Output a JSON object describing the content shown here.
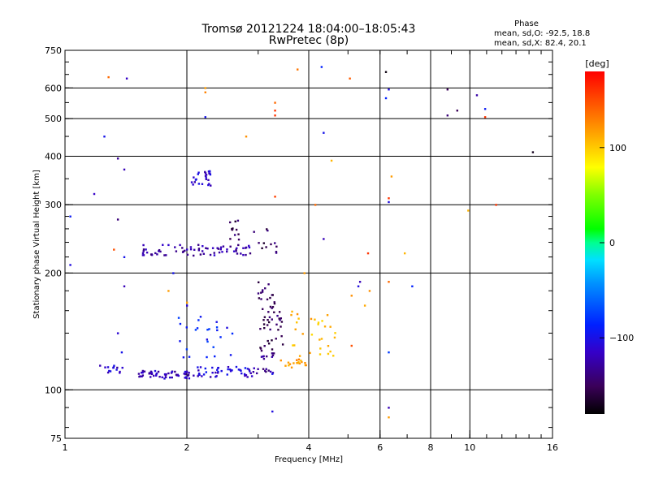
{
  "chart_data": {
    "type": "scatter",
    "title": "Tromsø 20121224 18:04:00–18:05:43",
    "subtitle": "RwPretec (8p)",
    "phase_box": {
      "heading": "Phase",
      "line1": "mean, sd,O: -92.5, 18.8",
      "line2": "mean, sd,X:  82.4, 20.1"
    },
    "xlabel": "Frequency [MHz]",
    "ylabel": "Stationary phase Virtual Height [km]",
    "x_scale": "log",
    "y_scale": "log",
    "xlim": [
      1,
      16
    ],
    "ylim": [
      75,
      750
    ],
    "x_ticks": [
      1,
      2,
      4,
      6,
      8,
      10,
      16
    ],
    "x_tick_labels": [
      "1",
      "2",
      "4",
      "6",
      "8",
      "10",
      "16"
    ],
    "y_ticks": [
      75,
      100,
      200,
      300,
      400,
      500,
      600,
      750
    ],
    "y_tick_labels": [
      "75",
      "100",
      "200",
      "300",
      "400",
      "500",
      "600",
      "750"
    ],
    "x_gridlines": [
      2,
      4,
      6,
      8,
      10
    ],
    "y_gridlines": [
      100,
      200,
      300,
      400,
      500,
      600
    ],
    "grid": true,
    "colorbar": {
      "label": "[deg]",
      "range": [
        -180,
        180
      ],
      "ticks": [
        100,
        0,
        -100
      ],
      "tick_labels": [
        "100",
        "0",
        "−100"
      ]
    },
    "point_color_encodes": "phase (deg)",
    "clusters": [
      {
        "x_range": [
          1.22,
          1.4
        ],
        "y_range": [
          110,
          116
        ],
        "n": 14,
        "phase": -115
      },
      {
        "x_range": [
          1.52,
          2.05
        ],
        "y_range": [
          107,
          112
        ],
        "n": 55,
        "phase": -120
      },
      {
        "x_range": [
          2.05,
          2.9
        ],
        "y_range": [
          108,
          115
        ],
        "n": 45,
        "phase": -110
      },
      {
        "x_range": [
          2.9,
          3.3
        ],
        "y_range": [
          110,
          125
        ],
        "n": 20,
        "phase": -130
      },
      {
        "x_range": [
          3.0,
          3.3
        ],
        "y_range": [
          125,
          190
        ],
        "n": 40,
        "phase": -150
      },
      {
        "x_range": [
          3.3,
          3.45
        ],
        "y_range": [
          130,
          160
        ],
        "n": 12,
        "phase": -145
      },
      {
        "x_range": [
          3.4,
          3.95
        ],
        "y_range": [
          114,
          120
        ],
        "n": 18,
        "phase": 120
      },
      {
        "x_range": [
          3.6,
          4.65
        ],
        "y_range": [
          120,
          160
        ],
        "n": 30,
        "phase": 110
      },
      {
        "x_range": [
          1.55,
          2.9
        ],
        "y_range": [
          222,
          237
        ],
        "n": 70,
        "phase": -125
      },
      {
        "x_range": [
          2.55,
          2.7
        ],
        "y_range": [
          235,
          275
        ],
        "n": 12,
        "phase": -150
      },
      {
        "x_range": [
          2.05,
          2.3
        ],
        "y_range": [
          335,
          372
        ],
        "n": 25,
        "phase": -110
      },
      {
        "x_range": [
          1.9,
          2.6
        ],
        "y_range": [
          120,
          155
        ],
        "n": 25,
        "phase": -90
      },
      {
        "x_range": [
          2.9,
          3.4
        ],
        "y_range": [
          220,
          260
        ],
        "n": 12,
        "phase": -150
      }
    ],
    "points": [
      [
        1.03,
        280,
        -95
      ],
      [
        1.03,
        210,
        -105
      ],
      [
        1.18,
        320,
        -115
      ],
      [
        1.25,
        450,
        -100
      ],
      [
        1.28,
        640,
        140
      ],
      [
        1.35,
        395,
        -130
      ],
      [
        1.35,
        275,
        -140
      ],
      [
        1.4,
        370,
        -120
      ],
      [
        1.4,
        220,
        -100
      ],
      [
        1.42,
        635,
        -115
      ],
      [
        1.35,
        140,
        -110
      ],
      [
        1.38,
        125,
        -100
      ],
      [
        1.4,
        185,
        -120
      ],
      [
        1.32,
        230,
        150
      ],
      [
        1.8,
        180,
        120
      ],
      [
        2.22,
        600,
        120
      ],
      [
        2.22,
        585,
        130
      ],
      [
        2.22,
        505,
        -100
      ],
      [
        2.8,
        450,
        125
      ],
      [
        3.3,
        550,
        140
      ],
      [
        3.3,
        525,
        160
      ],
      [
        3.3,
        510,
        160
      ],
      [
        3.3,
        315,
        155
      ],
      [
        3.75,
        670,
        135
      ],
      [
        4.15,
        300,
        140
      ],
      [
        4.3,
        680,
        -90
      ],
      [
        4.35,
        460,
        -100
      ],
      [
        4.35,
        245,
        -120
      ],
      [
        4.55,
        390,
        110
      ],
      [
        5.05,
        635,
        145
      ],
      [
        5.3,
        185,
        -105
      ],
      [
        5.35,
        190,
        -120
      ],
      [
        5.5,
        165,
        115
      ],
      [
        5.1,
        175,
        125
      ],
      [
        5.1,
        130,
        150
      ],
      [
        5.6,
        225,
        160
      ],
      [
        5.65,
        180,
        125
      ],
      [
        6.2,
        660,
        -175
      ],
      [
        6.2,
        565,
        -90
      ],
      [
        6.3,
        595,
        -105
      ],
      [
        6.3,
        312,
        160
      ],
      [
        6.3,
        305,
        -105
      ],
      [
        6.3,
        190,
        140
      ],
      [
        6.3,
        125,
        -80
      ],
      [
        6.4,
        355,
        120
      ],
      [
        6.9,
        225,
        110
      ],
      [
        7.2,
        185,
        -90
      ],
      [
        6.3,
        90,
        -120
      ],
      [
        6.3,
        85,
        120
      ],
      [
        8.8,
        595,
        -150
      ],
      [
        8.8,
        510,
        -140
      ],
      [
        9.3,
        525,
        -150
      ],
      [
        10.4,
        575,
        -125
      ],
      [
        10.9,
        530,
        -95
      ],
      [
        10.9,
        505,
        160
      ],
      [
        11.6,
        300,
        160
      ],
      [
        9.9,
        290,
        110
      ],
      [
        14.3,
        410,
        -170
      ],
      [
        3.25,
        110,
        -100
      ],
      [
        3.25,
        88,
        -105
      ],
      [
        3.9,
        200,
        120
      ],
      [
        2.0,
        168,
        120
      ],
      [
        1.85,
        200,
        -100
      ],
      [
        2.0,
        165,
        -110
      ]
    ]
  }
}
